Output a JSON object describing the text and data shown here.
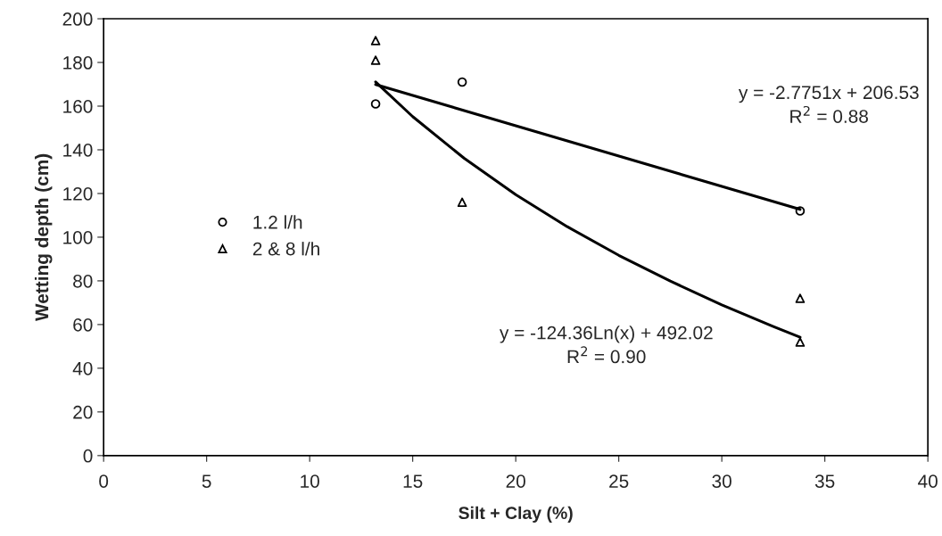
{
  "chart_data": {
    "type": "scatter",
    "xlabel": "Silt + Clay (%)",
    "ylabel": "Wetting depth (cm)",
    "xlim": [
      0,
      40
    ],
    "xticks": [
      0,
      5,
      10,
      15,
      20,
      25,
      30,
      35,
      40
    ],
    "ylim": [
      0,
      200
    ],
    "yticks": [
      0,
      20,
      40,
      60,
      80,
      100,
      120,
      140,
      160,
      180,
      200
    ],
    "grid": false,
    "legend": "left",
    "series": [
      {
        "name": "1.2 l/h",
        "marker": "circle",
        "color": "#000000",
        "x": [
          13.2,
          17.4,
          33.8
        ],
        "values": [
          161,
          171,
          112
        ]
      },
      {
        "name": "2 & 8 l/h",
        "marker": "triangle",
        "color": "#000000",
        "x": [
          13.2,
          13.2,
          17.4,
          33.8,
          33.8
        ],
        "values": [
          190,
          181,
          116,
          72,
          52
        ]
      },
      {
        "type": "line",
        "marker": "none",
        "color": "#000000",
        "x": [
          13.2,
          33.8
        ],
        "values": [
          169.9,
          112.7
        ]
      },
      {
        "type": "line",
        "marker": "none",
        "color": "#000000",
        "x": [
          13.2,
          15,
          17.5,
          20,
          22.5,
          25,
          27.5,
          30,
          32.5,
          33.8
        ],
        "values": [
          171.1,
          155.2,
          136.1,
          119.5,
          104.8,
          91.7,
          79.9,
          69.0,
          59.1,
          54.2
        ]
      }
    ],
    "annotations": [
      "y = -2.7751x + 206.53\nR$^{2}$ = 0.88",
      "y = -124.36Ln(x) + 492.02\nR$^{2}$ = 0.90"
    ]
  }
}
